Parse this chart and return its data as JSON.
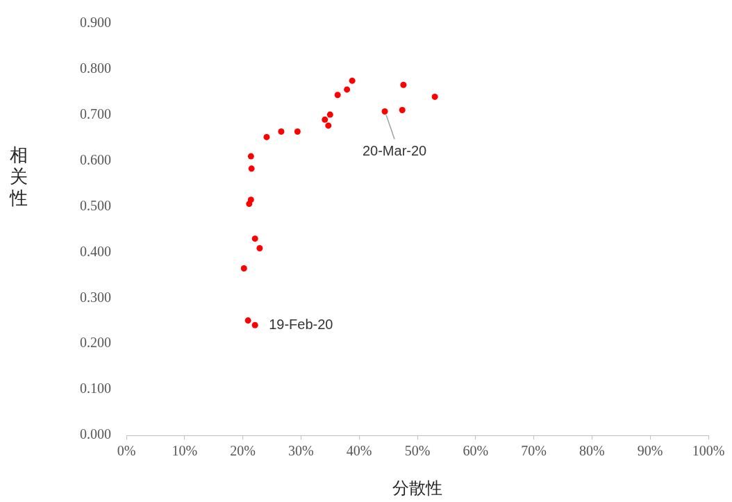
{
  "chart_data": {
    "type": "scatter",
    "xlabel": "分散性",
    "ylabel": "相关性",
    "x": [
      0.202,
      0.209,
      0.221,
      0.221,
      0.229,
      0.211,
      0.214,
      0.215,
      0.214,
      0.241,
      0.266,
      0.294,
      0.341,
      0.347,
      0.35,
      0.363,
      0.379,
      0.388,
      0.444,
      0.474,
      0.476,
      0.53
    ],
    "series": [
      {
        "color": "#ff0000",
        "values": [
          0.365,
          0.251,
          0.241,
          0.43,
          0.409,
          0.506,
          0.515,
          0.583,
          0.61,
          0.652,
          0.664,
          0.664,
          0.69,
          0.677,
          0.701,
          0.744,
          0.756,
          0.775,
          0.708,
          0.711,
          0.766,
          0.74
        ]
      }
    ],
    "xlim": [
      0,
      1
    ],
    "xticks": [
      {
        "value": 0,
        "label": "0%"
      },
      {
        "value": 0.1,
        "label": "10%"
      },
      {
        "value": 0.2,
        "label": "20%"
      },
      {
        "value": 0.3,
        "label": "30%"
      },
      {
        "value": 0.4,
        "label": "40%"
      },
      {
        "value": 0.5,
        "label": "50%"
      },
      {
        "value": 0.6,
        "label": "60%"
      },
      {
        "value": 0.7,
        "label": "70%"
      },
      {
        "value": 0.8,
        "label": "80%"
      },
      {
        "value": 0.9,
        "label": "90%"
      },
      {
        "value": 1,
        "label": "100%"
      }
    ],
    "ylim": [
      0,
      0.9
    ],
    "yticks": [
      {
        "value": 0,
        "label": "0.000"
      },
      {
        "value": 0.1,
        "label": "0.100"
      },
      {
        "value": 0.2,
        "label": "0.200"
      },
      {
        "value": 0.3,
        "label": "0.300"
      },
      {
        "value": 0.4,
        "label": "0.400"
      },
      {
        "value": 0.5,
        "label": "0.500"
      },
      {
        "value": 0.6,
        "label": "0.600"
      },
      {
        "value": 0.7,
        "label": "0.700"
      },
      {
        "value": 0.8,
        "label": "0.800"
      },
      {
        "value": 0.9,
        "label": "0.900"
      }
    ],
    "annotations": [
      {
        "text": "19-Feb-20",
        "x": 0.221,
        "y": 0.241
      },
      {
        "text": "20-Mar-20",
        "x": 0.444,
        "y": 0.708
      }
    ],
    "grid": false,
    "legend": false,
    "marker": "circle"
  }
}
